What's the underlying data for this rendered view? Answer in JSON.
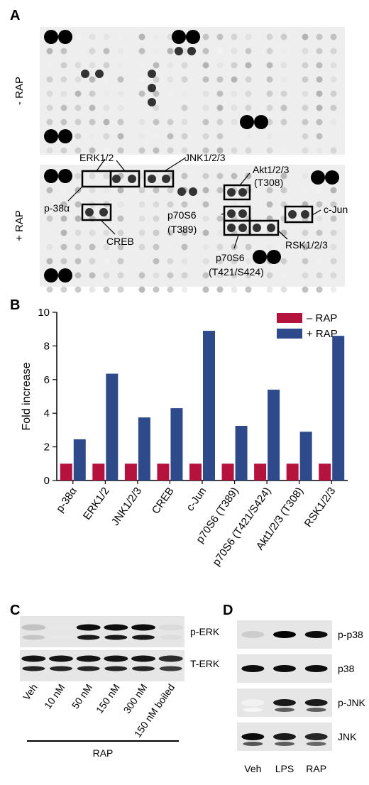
{
  "panels": {
    "A": {
      "label": "A",
      "condition_top": "- RAP",
      "condition_bottom": "+ RAP",
      "annotations": [
        "ERK1/2",
        "JNK1/2/3",
        "p-38α",
        "CREB",
        "Akt1/2/3",
        "(T308)",
        "p70S6",
        "(T389)",
        "c-Jun",
        "RSK1/2/3",
        "p70S6",
        "(T421/S424)"
      ]
    },
    "B": {
      "label": "B"
    },
    "C": {
      "label": "C",
      "bands": [
        "p-ERK",
        "T-ERK"
      ],
      "lanes": [
        "Veh",
        "10 nM",
        "50 nM",
        "150 nM",
        "300 nM",
        "150 nM boiled"
      ],
      "treatment": "RAP",
      "band_intensity_p_erk": [
        0.25,
        0.1,
        1.0,
        1.0,
        1.0,
        0.15
      ],
      "band_intensity_t_erk": [
        1.0,
        1.0,
        1.0,
        1.0,
        1.0,
        0.9
      ]
    },
    "D": {
      "label": "D",
      "bands": [
        "p-p38",
        "p38",
        "p-JNK",
        "JNK"
      ],
      "lanes": [
        "Veh",
        "LPS",
        "RAP"
      ]
    }
  },
  "chart_data": {
    "type": "bar",
    "categories": [
      "p-38α",
      "ERK1/2",
      "JNK1/2/3",
      "CREB",
      "c-Jun",
      "p70S6 (T389)",
      "p70S6 (T421/S424)",
      "Akt1/2/3 (T308)",
      "RSK1/2/3"
    ],
    "series": [
      {
        "name": "– RAP",
        "values": [
          1,
          1,
          1,
          1,
          1,
          1,
          1,
          1,
          1
        ]
      },
      {
        "name": "+ RAP",
        "values": [
          2.45,
          6.35,
          3.75,
          4.3,
          8.9,
          3.25,
          5.4,
          2.9,
          8.6
        ]
      }
    ],
    "title": "",
    "xlabel": "",
    "ylabel": "Fold increase",
    "ylim": [
      0,
      10
    ],
    "yticks": [
      0,
      2,
      4,
      6,
      8,
      10
    ],
    "legend": "top-right",
    "colors": [
      "#b5123e",
      "#2f4a8a"
    ],
    "grid": false
  }
}
